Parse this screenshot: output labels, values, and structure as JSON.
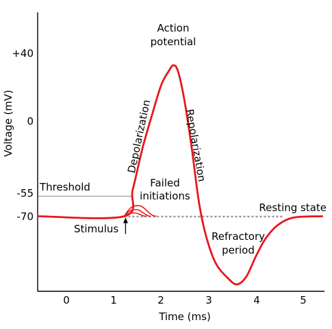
{
  "chart_data": {
    "type": "line",
    "title": "",
    "xlabel": "Time (ms)",
    "ylabel": "Voltage (mV)",
    "xlim": [
      -0.6,
      5.4
    ],
    "ylim": [
      -140,
      58
    ],
    "x_ticks": [
      0,
      1,
      2,
      3,
      4,
      5
    ],
    "y_tick_labels": [
      {
        "value": 40,
        "label": "+40"
      },
      {
        "value": 0,
        "label": "0"
      },
      {
        "value": -55,
        "label": "-55"
      },
      {
        "value": -70,
        "label": "-70"
      }
    ],
    "grid": false,
    "series": [
      {
        "name": "",
        "color": "#e8161b",
        "points": [
          [
            -0.6,
            -70
          ],
          [
            1.22,
            -70
          ],
          [
            1.4,
            -50
          ],
          [
            1.6,
            -20
          ],
          [
            1.8,
            5
          ],
          [
            2.0,
            28
          ],
          [
            2.15,
            38
          ],
          [
            2.26,
            43
          ],
          [
            2.36,
            38
          ],
          [
            2.5,
            15
          ],
          [
            2.65,
            -20
          ],
          [
            2.8,
            -60
          ],
          [
            2.95,
            -85
          ],
          [
            3.15,
            -105
          ],
          [
            3.4,
            -116
          ],
          [
            3.6,
            -121
          ],
          [
            3.8,
            -115
          ],
          [
            4.0,
            -100
          ],
          [
            4.2,
            -87
          ],
          [
            4.45,
            -77
          ],
          [
            4.8,
            -71
          ],
          [
            5.4,
            -70
          ]
        ]
      }
    ],
    "failed_initiations": [
      {
        "start": 1.22,
        "peak_x": 1.52,
        "peak_v": -62,
        "end": 1.9
      },
      {
        "start": 1.22,
        "peak_x": 1.48,
        "peak_v": -65,
        "end": 1.78
      },
      {
        "start": 1.22,
        "peak_x": 1.44,
        "peak_v": -67.5,
        "end": 1.68
      }
    ],
    "resting_line": {
      "value": -70,
      "from": 1.22,
      "to": 4.6,
      "style": "dotted",
      "color": "#999999"
    },
    "threshold_line": {
      "value": -55,
      "from": -0.6,
      "to": 1.4,
      "color": "#888888"
    },
    "stimulus_x": 1.22,
    "annotations": {
      "action_potential_line1": "Action",
      "action_potential_line2": "potential",
      "depolarization": "Depolarization",
      "repolarization": "Repolarization",
      "failed_line1": "Failed",
      "failed_line2": "initiations",
      "threshold": "Threshold",
      "resting_state": "Resting state",
      "stimulus": "Stimulus",
      "refractory_line1": "Refractory",
      "refractory_line2": "period"
    }
  }
}
